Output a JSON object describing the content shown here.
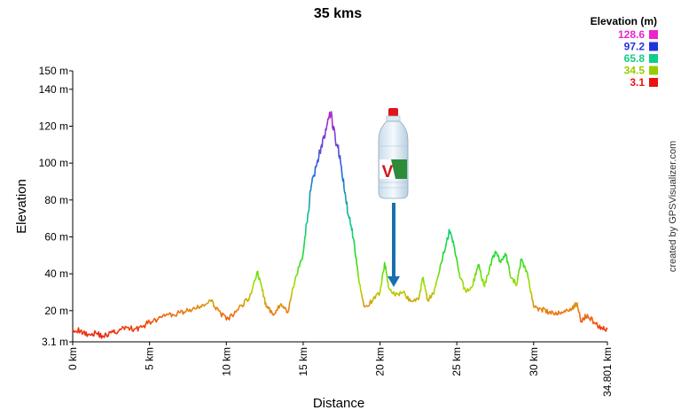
{
  "chart_data": {
    "type": "line",
    "title": "35 kms",
    "xlabel": "Distance",
    "ylabel": "Elevation",
    "x_unit": "km",
    "y_unit": "m",
    "xlim": [
      0,
      34.801
    ],
    "ylim": [
      3.1,
      150
    ],
    "x_ticks": [
      {
        "value": 0,
        "label": "0 km"
      },
      {
        "value": 5,
        "label": "5 km"
      },
      {
        "value": 10,
        "label": "10 km"
      },
      {
        "value": 15,
        "label": "15 km"
      },
      {
        "value": 20,
        "label": "20 km"
      },
      {
        "value": 25,
        "label": "25 km"
      },
      {
        "value": 30,
        "label": "30 km"
      },
      {
        "value": 34.801,
        "label": "34.801 km"
      }
    ],
    "y_ticks": [
      {
        "value": 3.1,
        "label": "3.1 m"
      },
      {
        "value": 20,
        "label": "20 m"
      },
      {
        "value": 40,
        "label": "40 m"
      },
      {
        "value": 60,
        "label": "60 m"
      },
      {
        "value": 80,
        "label": "80 m"
      },
      {
        "value": 100,
        "label": "100 m"
      },
      {
        "value": 120,
        "label": "120 m"
      },
      {
        "value": 140,
        "label": "140 m"
      },
      {
        "value": 150,
        "label": "150 m"
      }
    ],
    "grid": false,
    "legend": {
      "title": "Elevation (m)",
      "placement": "top-right",
      "entries": [
        {
          "label": "128.6",
          "color": "#ee22cc"
        },
        {
          "label": "97.2",
          "color": "#2233dd"
        },
        {
          "label": "65.8",
          "color": "#11cc88"
        },
        {
          "label": "34.5",
          "color": "#99cc00"
        },
        {
          "label": "3.1",
          "color": "#ee1111"
        }
      ]
    },
    "series": [
      {
        "color_scale": "elevation",
        "points": [
          [
            0,
            10
          ],
          [
            0.5,
            9
          ],
          [
            1,
            7
          ],
          [
            1.5,
            8
          ],
          [
            2,
            6
          ],
          [
            2.5,
            8
          ],
          [
            3,
            9
          ],
          [
            3.5,
            11
          ],
          [
            4,
            10
          ],
          [
            4.5,
            11
          ],
          [
            5,
            14
          ],
          [
            5.5,
            15
          ],
          [
            6,
            17
          ],
          [
            6.5,
            18
          ],
          [
            7,
            19
          ],
          [
            7.5,
            20
          ],
          [
            8,
            21
          ],
          [
            8.5,
            23
          ],
          [
            9,
            25
          ],
          [
            9.5,
            20
          ],
          [
            10,
            15
          ],
          [
            10.5,
            18
          ],
          [
            11,
            23
          ],
          [
            11.5,
            27
          ],
          [
            12,
            41
          ],
          [
            12.3,
            33
          ],
          [
            12.6,
            22
          ],
          [
            13,
            18
          ],
          [
            13.5,
            23
          ],
          [
            14,
            19
          ],
          [
            14.5,
            38
          ],
          [
            15,
            51
          ],
          [
            15.3,
            72
          ],
          [
            15.6,
            92
          ],
          [
            15.9,
            100
          ],
          [
            16.2,
            110
          ],
          [
            16.5,
            118
          ],
          [
            16.8,
            127
          ],
          [
            17.1,
            112
          ],
          [
            17.4,
            104
          ],
          [
            17.7,
            84
          ],
          [
            18,
            70
          ],
          [
            18.3,
            58
          ],
          [
            18.6,
            38
          ],
          [
            19,
            22
          ],
          [
            19.5,
            25
          ],
          [
            20,
            30
          ],
          [
            20.3,
            46
          ],
          [
            20.6,
            32
          ],
          [
            21,
            28
          ],
          [
            21.5,
            30
          ],
          [
            22,
            25
          ],
          [
            22.5,
            26
          ],
          [
            22.8,
            38
          ],
          [
            23.1,
            26
          ],
          [
            23.5,
            29
          ],
          [
            24,
            46
          ],
          [
            24.5,
            64
          ],
          [
            24.8,
            56
          ],
          [
            25.2,
            38
          ],
          [
            25.6,
            30
          ],
          [
            26,
            33
          ],
          [
            26.4,
            45
          ],
          [
            26.8,
            33
          ],
          [
            27.2,
            45
          ],
          [
            27.5,
            52
          ],
          [
            27.8,
            47
          ],
          [
            28.2,
            50
          ],
          [
            28.5,
            38
          ],
          [
            28.9,
            34
          ],
          [
            29.2,
            48
          ],
          [
            29.6,
            40
          ],
          [
            30,
            22
          ],
          [
            30.5,
            21
          ],
          [
            31,
            19
          ],
          [
            31.5,
            18
          ],
          [
            32,
            20
          ],
          [
            32.5,
            21
          ],
          [
            32.8,
            24
          ],
          [
            33.1,
            14
          ],
          [
            33.5,
            18
          ],
          [
            34,
            13
          ],
          [
            34.4,
            11
          ],
          [
            34.801,
            10
          ]
        ]
      }
    ]
  },
  "attribution": "created by GPSVisualizer.com",
  "marker": {
    "bottle_brand_glyph": "V",
    "arrow_target_km": 21
  }
}
